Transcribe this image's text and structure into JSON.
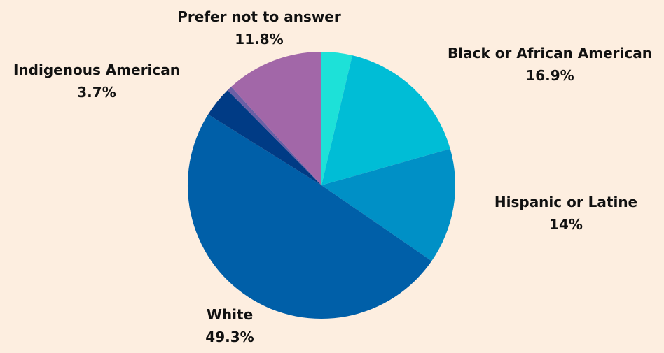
{
  "chart_data": {
    "type": "pie",
    "title": "",
    "start_angle_deg": 0,
    "direction": "clockwise",
    "slices": [
      {
        "name": "",
        "label": "",
        "value": 3.7,
        "value_label": "",
        "color": "#1de1d8"
      },
      {
        "name": "Black or African American",
        "label": "Black or African American",
        "value": 16.9,
        "value_label": "16.9%",
        "color": "#00bdd6"
      },
      {
        "name": "Hispanic or Latine",
        "label": "Hispanic or Latine",
        "value": 14,
        "value_label": "14%",
        "color": "#0090c6"
      },
      {
        "name": "White",
        "label": "White",
        "value": 49.3,
        "value_label": "49.3%",
        "color": "#005fa8"
      },
      {
        "name": "Indigenous American",
        "label": "Indigenous American",
        "value": 3.7,
        "value_label": "3.7%",
        "color": "#003b85"
      },
      {
        "name": "",
        "label": "",
        "value": 0.6,
        "value_label": "",
        "color": "#6a5fa6"
      },
      {
        "name": "Prefer not to answer",
        "label": "Prefer not to answer",
        "value": 11.8,
        "value_label": "11.8%",
        "color": "#a267a8"
      }
    ]
  }
}
